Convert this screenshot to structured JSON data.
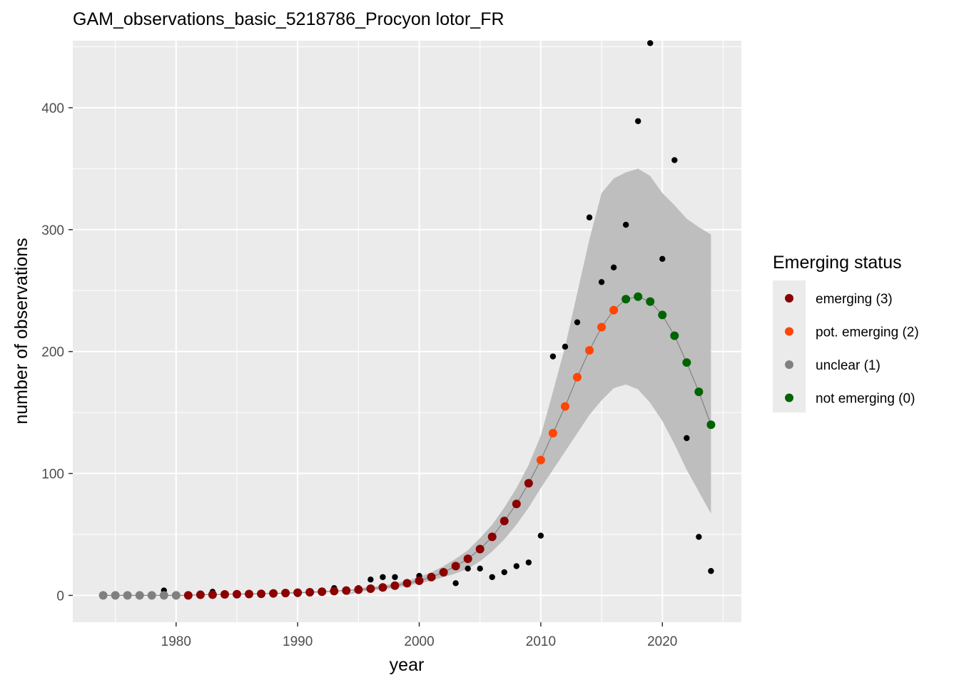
{
  "chart_data": {
    "type": "scatter",
    "title": "GAM_observations_basic_5218786_Procyon lotor_FR",
    "xlabel": "year",
    "ylabel": "number of observations",
    "xlim": [
      1971.5,
      2026.5
    ],
    "ylim": [
      -22,
      455
    ],
    "x_ticks": [
      1980,
      1990,
      2000,
      2010,
      2020
    ],
    "y_ticks": [
      0,
      100,
      200,
      300,
      400
    ],
    "grid": true,
    "legend": {
      "title": "Emerging status",
      "position": "right",
      "entries": [
        {
          "key": "3",
          "label": "emerging (3)",
          "color": "#8b0000"
        },
        {
          "key": "2",
          "label": "pot. emerging (2)",
          "color": "#ff4500"
        },
        {
          "key": "1",
          "label": "unclear (1)",
          "color": "#808080"
        },
        {
          "key": "0",
          "label": "not emerging (0)",
          "color": "#006400"
        }
      ]
    },
    "colors": {
      "panel_background": "#ebebeb",
      "grid": "#ffffff",
      "ribbon": "#bebebe",
      "fit_line": "#808080",
      "observed_points": "#000000"
    },
    "observed": {
      "x": [
        1974,
        1975,
        1976,
        1977,
        1978,
        1979,
        1980,
        1981,
        1982,
        1983,
        1984,
        1985,
        1986,
        1987,
        1988,
        1989,
        1990,
        1991,
        1992,
        1993,
        1994,
        1995,
        1996,
        1997,
        1998,
        1999,
        2000,
        2001,
        2002,
        2003,
        2004,
        2005,
        2006,
        2007,
        2008,
        2009,
        2010,
        2011,
        2012,
        2013,
        2014,
        2015,
        2016,
        2017,
        2018,
        2019,
        2020,
        2021,
        2022,
        2023,
        2024
      ],
      "y": [
        0,
        0,
        0,
        0,
        0,
        4,
        0,
        0,
        0,
        3,
        1,
        1,
        1,
        2,
        2,
        1,
        1,
        2,
        3,
        6,
        3,
        6,
        13,
        15,
        15,
        10,
        16,
        15,
        19,
        10,
        22,
        22,
        15,
        19,
        24,
        27,
        49,
        196,
        204,
        224,
        310,
        257,
        269,
        304,
        389,
        453,
        276,
        357,
        129,
        48,
        20
      ]
    },
    "fitted": {
      "x": [
        1974,
        1975,
        1976,
        1977,
        1978,
        1979,
        1980,
        1981,
        1982,
        1983,
        1984,
        1985,
        1986,
        1987,
        1988,
        1989,
        1990,
        1991,
        1992,
        1993,
        1994,
        1995,
        1996,
        1997,
        1998,
        1999,
        2000,
        2001,
        2002,
        2003,
        2004,
        2005,
        2006,
        2007,
        2008,
        2009,
        2010,
        2011,
        2012,
        2013,
        2014,
        2015,
        2016,
        2017,
        2018,
        2019,
        2020,
        2021,
        2022,
        2023,
        2024
      ],
      "y": [
        0,
        0,
        0,
        0,
        0,
        0,
        0,
        0,
        0.5,
        0.6,
        0.8,
        1,
        1.1,
        1.3,
        1.6,
        1.9,
        2.2,
        2.6,
        3,
        3.5,
        4,
        4.7,
        5.5,
        6.5,
        8,
        10,
        12,
        15,
        19,
        24,
        30,
        38,
        48,
        61,
        75,
        92,
        111,
        133,
        155,
        179,
        201,
        220,
        234,
        243,
        245,
        241,
        230,
        213,
        191,
        167,
        140
      ],
      "status": [
        "1",
        "1",
        "1",
        "1",
        "1",
        "1",
        "1",
        "3",
        "3",
        "3",
        "3",
        "3",
        "3",
        "3",
        "3",
        "3",
        "3",
        "3",
        "3",
        "3",
        "3",
        "3",
        "3",
        "3",
        "3",
        "3",
        "3",
        "3",
        "3",
        "3",
        "3",
        "3",
        "3",
        "3",
        "3",
        "3",
        "2",
        "2",
        "2",
        "2",
        "2",
        "2",
        "2",
        "0",
        "0",
        "0",
        "0",
        "0",
        "0",
        "0",
        "0"
      ],
      "lower": [
        0,
        0,
        0,
        0,
        0,
        0,
        0,
        0,
        0,
        0,
        0,
        0,
        0,
        0,
        0,
        0,
        0,
        0,
        0,
        0,
        0,
        3,
        4,
        5,
        6,
        8,
        10,
        12,
        15,
        18,
        22,
        28,
        36,
        46,
        58,
        72,
        88,
        103,
        118,
        133,
        148,
        160,
        170,
        173,
        169,
        158,
        143,
        124,
        103,
        85,
        67
      ],
      "upper": [
        0,
        0,
        0,
        0,
        0,
        0,
        0,
        0,
        0,
        0,
        0,
        0,
        0,
        0,
        0,
        0,
        0,
        0,
        0,
        0,
        0,
        6,
        7,
        8,
        10,
        12,
        15,
        19,
        24,
        30,
        37,
        47,
        58,
        72,
        88,
        107,
        131,
        167,
        204,
        248,
        292,
        330,
        342,
        347,
        350,
        344,
        330,
        320,
        309,
        302,
        296
      ]
    }
  }
}
